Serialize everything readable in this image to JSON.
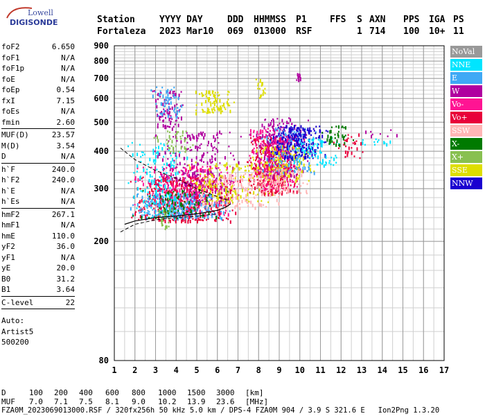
{
  "logo": {
    "line1": "Lowell",
    "line2": "DIGISONDE"
  },
  "header": {
    "labels": [
      "Station",
      "YYYY DAY",
      "DDD",
      "HHMMSS",
      "P1",
      "FFS",
      "S",
      "AXN",
      "PPS",
      "IGA",
      "PS"
    ],
    "values": [
      "Fortaleza",
      "2023 Mar10",
      "069",
      "013000",
      "RSF",
      "",
      "1",
      "714",
      "100",
      "10+",
      "11"
    ]
  },
  "params": [
    {
      "group": [
        {
          "name": "foF2",
          "value": "6.650"
        },
        {
          "name": "foF1",
          "value": "N/A"
        },
        {
          "name": "foF1p",
          "value": "N/A"
        },
        {
          "name": "foE",
          "value": "N/A"
        },
        {
          "name": "foEp",
          "value": "0.54"
        },
        {
          "name": "fxI",
          "value": "7.15"
        },
        {
          "name": "foEs",
          "value": "N/A"
        },
        {
          "name": "fmin",
          "value": "2.60"
        }
      ]
    },
    {
      "group": [
        {
          "name": "MUF(D)",
          "value": "23.57"
        },
        {
          "name": "M(D)",
          "value": "3.54"
        },
        {
          "name": "D",
          "value": "N/A"
        }
      ]
    },
    {
      "group": [
        {
          "name": "h`F",
          "value": "240.0"
        },
        {
          "name": "h`F2",
          "value": "240.0"
        },
        {
          "name": "h`E",
          "value": "N/A"
        },
        {
          "name": "h`Es",
          "value": "N/A"
        }
      ]
    },
    {
      "group": [
        {
          "name": "hmF2",
          "value": "267.1"
        },
        {
          "name": "hmF1",
          "value": "N/A"
        },
        {
          "name": "hmE",
          "value": "110.0"
        },
        {
          "name": "yF2",
          "value": "36.0"
        },
        {
          "name": "yF1",
          "value": "N/A"
        },
        {
          "name": "yE",
          "value": "20.0"
        },
        {
          "name": "B0",
          "value": "31.2"
        },
        {
          "name": "B1",
          "value": "3.64"
        }
      ]
    },
    {
      "group": [
        {
          "name": "C-level",
          "value": "22"
        }
      ]
    }
  ],
  "auto": [
    "Auto:",
    "Artist5",
    "500200"
  ],
  "legend": [
    {
      "label": "NoVal",
      "color": "#999999"
    },
    {
      "label": "NNE",
      "color": "#00e5ff"
    },
    {
      "label": "E",
      "color": "#3fa9f5"
    },
    {
      "label": "W",
      "color": "#b0009f"
    },
    {
      "label": "Vo-",
      "color": "#ff1493"
    },
    {
      "label": "Vo+",
      "color": "#e8003a"
    },
    {
      "label": "SSW",
      "color": "#ffb6b6"
    },
    {
      "label": "X-",
      "color": "#007a00"
    },
    {
      "label": "X+",
      "color": "#88c050"
    },
    {
      "label": "SSE",
      "color": "#dede00"
    },
    {
      "label": "NNW",
      "color": "#1a00d0"
    }
  ],
  "chart_data": {
    "type": "scatter",
    "xlim": [
      1,
      17
    ],
    "ylim": [
      80,
      900
    ],
    "y_scale": "log",
    "grid": true,
    "x_ticks": [
      1,
      2,
      3,
      4,
      5,
      6,
      7,
      8,
      9,
      10,
      11,
      12,
      13,
      14,
      15,
      16,
      17
    ],
    "y_ticks": [
      80,
      200,
      300,
      400,
      500,
      600,
      700,
      800,
      900
    ],
    "x_tick_labels": [
      "1",
      "2",
      "3",
      "4",
      "5",
      "6",
      "7",
      "8",
      "9",
      "10",
      "11",
      "12",
      "13",
      "14",
      "15",
      "16",
      "17"
    ],
    "y_tick_labels": [
      "80",
      "200",
      "300",
      "400",
      "500",
      "600",
      "700",
      "800",
      "900"
    ],
    "profile_x": [
      1.5,
      2.0,
      3.0,
      4.0,
      5.0,
      6.0,
      6.4,
      6.65
    ],
    "profile_y": [
      228,
      234,
      240,
      243,
      247,
      254,
      260,
      267
    ],
    "dashed_x": [
      1.3,
      2.0,
      3.0,
      4.0,
      5.0,
      6.0,
      6.5
    ],
    "dashed_y": [
      410,
      375,
      345,
      325,
      300,
      282,
      275
    ],
    "dashed_lower_x": [
      1.3,
      2.0,
      3.0,
      4.0,
      5.0,
      6.0
    ],
    "dashed_lower_y": [
      215,
      228,
      236,
      240,
      243,
      247
    ],
    "clusters": [
      {
        "color": "#e8003a",
        "x0": 1.6,
        "x1": 7.2,
        "y0": 235,
        "y1": 330,
        "n": 520
      },
      {
        "color": "#ff1493",
        "x0": 1.8,
        "x1": 7.0,
        "y0": 245,
        "y1": 360,
        "n": 260
      },
      {
        "color": "#3fa9f5",
        "x0": 1.6,
        "x1": 6.8,
        "y0": 240,
        "y1": 290,
        "n": 260
      },
      {
        "color": "#00e5ff",
        "x0": 1.6,
        "x1": 4.6,
        "y0": 240,
        "y1": 430,
        "n": 160
      },
      {
        "color": "#b0009f",
        "x0": 2.8,
        "x1": 7.2,
        "y0": 270,
        "y1": 470,
        "n": 260
      },
      {
        "color": "#ffb6b6",
        "x0": 4.0,
        "x1": 9.5,
        "y0": 260,
        "y1": 340,
        "n": 180
      },
      {
        "color": "#dede00",
        "x0": 4.2,
        "x1": 9.5,
        "y0": 270,
        "y1": 370,
        "n": 140
      },
      {
        "color": "#007a00",
        "x0": 1.8,
        "x1": 6.5,
        "y0": 240,
        "y1": 300,
        "n": 80
      },
      {
        "color": "#88c050",
        "x0": 2.5,
        "x1": 5.0,
        "y0": 400,
        "y1": 470,
        "n": 40
      },
      {
        "color": "#b0009f",
        "x0": 2.8,
        "x1": 4.4,
        "y0": 480,
        "y1": 640,
        "n": 90
      },
      {
        "color": "#3fa9f5",
        "x0": 2.6,
        "x1": 4.4,
        "y0": 520,
        "y1": 660,
        "n": 60
      },
      {
        "color": "#dede00",
        "x0": 4.8,
        "x1": 6.8,
        "y0": 540,
        "y1": 640,
        "n": 80
      },
      {
        "color": "#e8003a",
        "x0": 7.3,
        "x1": 10.0,
        "y0": 290,
        "y1": 450,
        "n": 380
      },
      {
        "color": "#ff1493",
        "x0": 7.4,
        "x1": 10.2,
        "y0": 300,
        "y1": 480,
        "n": 200
      },
      {
        "color": "#b0009f",
        "x0": 7.4,
        "x1": 10.5,
        "y0": 330,
        "y1": 520,
        "n": 200
      },
      {
        "color": "#dede00",
        "x0": 7.5,
        "x1": 10.8,
        "y0": 320,
        "y1": 420,
        "n": 140
      },
      {
        "color": "#3fa9f5",
        "x0": 8.0,
        "x1": 11.2,
        "y0": 340,
        "y1": 480,
        "n": 130
      },
      {
        "color": "#1a00d0",
        "x0": 8.5,
        "x1": 11.4,
        "y0": 380,
        "y1": 490,
        "n": 200
      },
      {
        "color": "#ffb6b6",
        "x0": 7.5,
        "x1": 10.5,
        "y0": 290,
        "y1": 350,
        "n": 100
      },
      {
        "color": "#00e5ff",
        "x0": 9.5,
        "x1": 12.0,
        "y0": 360,
        "y1": 450,
        "n": 70
      },
      {
        "color": "#007a00",
        "x0": 11.0,
        "x1": 12.6,
        "y0": 420,
        "y1": 500,
        "n": 40
      },
      {
        "color": "#e8003a",
        "x0": 11.5,
        "x1": 13.2,
        "y0": 380,
        "y1": 460,
        "n": 30
      },
      {
        "color": "#00e5ff",
        "x0": 12.5,
        "x1": 14.8,
        "y0": 420,
        "y1": 450,
        "n": 12
      },
      {
        "color": "#b0009f",
        "x0": 12.5,
        "x1": 15.3,
        "y0": 450,
        "y1": 480,
        "n": 8
      },
      {
        "color": "#dede00",
        "x0": 7.8,
        "x1": 8.4,
        "y0": 600,
        "y1": 700,
        "n": 20
      },
      {
        "color": "#b0009f",
        "x0": 9.8,
        "x1": 10.1,
        "y0": 690,
        "y1": 740,
        "n": 12
      },
      {
        "color": "#88c050",
        "x0": 3.0,
        "x1": 3.8,
        "y0": 220,
        "y1": 260,
        "n": 25
      }
    ]
  },
  "footer": {
    "d_label": "D",
    "d_values": [
      "100",
      "200",
      "400",
      "600",
      "800",
      "1000",
      "1500",
      "3000",
      "[km]"
    ],
    "muf_label": "MUF",
    "muf_values": [
      "7.0",
      "7.1",
      "7.5",
      "8.1",
      "9.0",
      "10.2",
      "13.9",
      "23.6",
      "[MHz]"
    ],
    "file_line": "FZA0M_2023069013000.RSF / 320fx256h 50 kHz 5.0 km / DPS-4 FZA0M 904 / 3.9 S 321.6 E   Ion2Png 1.3.20"
  }
}
